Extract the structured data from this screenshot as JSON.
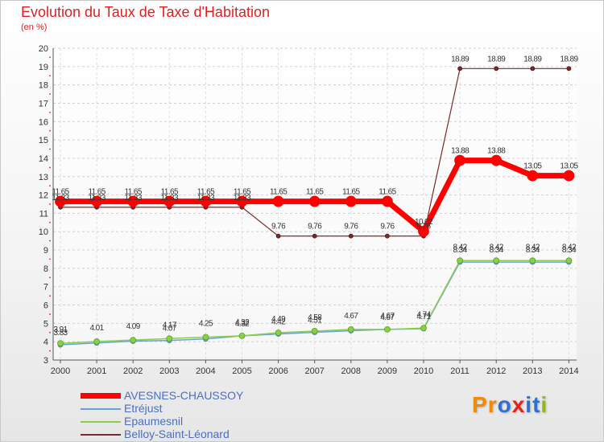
{
  "title": "Evolution du Taux de Taxe d'Habitation",
  "subtitle": "(en %)",
  "logo": {
    "text": "Proxiti",
    "letters": [
      "P",
      "r",
      "o",
      "x",
      "i",
      "t",
      "i"
    ],
    "colors": [
      "#f08a00",
      "#f08a00",
      "#2f6fd0",
      "#e2231a",
      "#2f6fd0",
      "#2f6fd0",
      "#8bbb1b"
    ]
  },
  "chart_data": {
    "type": "line",
    "title": "Evolution du Taux de Taxe d'Habitation",
    "ylabel": "(en %)",
    "xlabel": "",
    "x": [
      "2000",
      "2001",
      "2002",
      "2003",
      "2004",
      "2005",
      "2006",
      "2007",
      "2008",
      "2009",
      "2010",
      "2011",
      "2012",
      "2013",
      "2014"
    ],
    "ylim": [
      3,
      20
    ],
    "yticks": [
      "3",
      "4",
      "5",
      "6",
      "7",
      "8",
      "9",
      "10",
      "11",
      "12",
      "13",
      "14",
      "15",
      "16",
      "17",
      "18",
      "19",
      "20"
    ],
    "grid": true,
    "legend_position": "bottom-left",
    "series": [
      {
        "name": "AVESNES-CHAUSSOY",
        "color": "#ff0000",
        "values": [
          11.65,
          11.65,
          11.65,
          11.65,
          11.65,
          11.65,
          11.65,
          11.65,
          11.65,
          11.65,
          10.02,
          13.88,
          13.88,
          13.05,
          13.05
        ],
        "labels": [
          "11.65",
          "11.65",
          "11.65",
          "11.65",
          "11.65",
          "11.65",
          "11.65",
          "11.65",
          "11.65",
          "11.65",
          "10.02",
          "13.88",
          "13.88",
          "13.05",
          "13.05"
        ]
      },
      {
        "name": "Etréjust",
        "color": "#6aa0d8",
        "values": [
          3.83,
          3.93,
          4.03,
          4.07,
          4.15,
          4.32,
          4.42,
          4.51,
          4.6,
          4.67,
          4.71,
          8.34,
          8.34,
          8.34,
          8.34
        ],
        "labels": [
          "3.83",
          "",
          "",
          "4.07",
          "",
          "4.32",
          "4.42",
          "4.51",
          "",
          "4.67",
          "4.71",
          "8.34",
          "8.34",
          "8.34",
          "8.34"
        ]
      },
      {
        "name": "Epaumesnil",
        "color": "#88d048",
        "values": [
          3.91,
          4.01,
          4.09,
          4.17,
          4.25,
          4.32,
          4.49,
          4.58,
          4.67,
          4.67,
          4.74,
          8.42,
          8.42,
          8.42,
          8.42
        ],
        "labels": [
          "3.91",
          "4.01",
          "4.09",
          "4.17",
          "4.25",
          "4.32",
          "4.49",
          "4.58",
          "4.67",
          "4.67",
          "4.74",
          "8.42",
          "8.42",
          "8.42",
          "8.42"
        ]
      },
      {
        "name": "Belloy-Saint-Léonard",
        "color": "#7a2a2a",
        "values": [
          11.33,
          11.33,
          11.33,
          11.33,
          11.33,
          11.33,
          9.76,
          9.76,
          9.76,
          9.76,
          9.76,
          18.89,
          18.89,
          18.89,
          18.89
        ],
        "labels": [
          "11.33",
          "11.33",
          "11.33",
          "11.33",
          "11.33",
          "11.33",
          "9.76",
          "9.76",
          "9.76",
          "9.76",
          "9.76",
          "18.89",
          "18.89",
          "18.89",
          "18.89"
        ]
      }
    ]
  }
}
